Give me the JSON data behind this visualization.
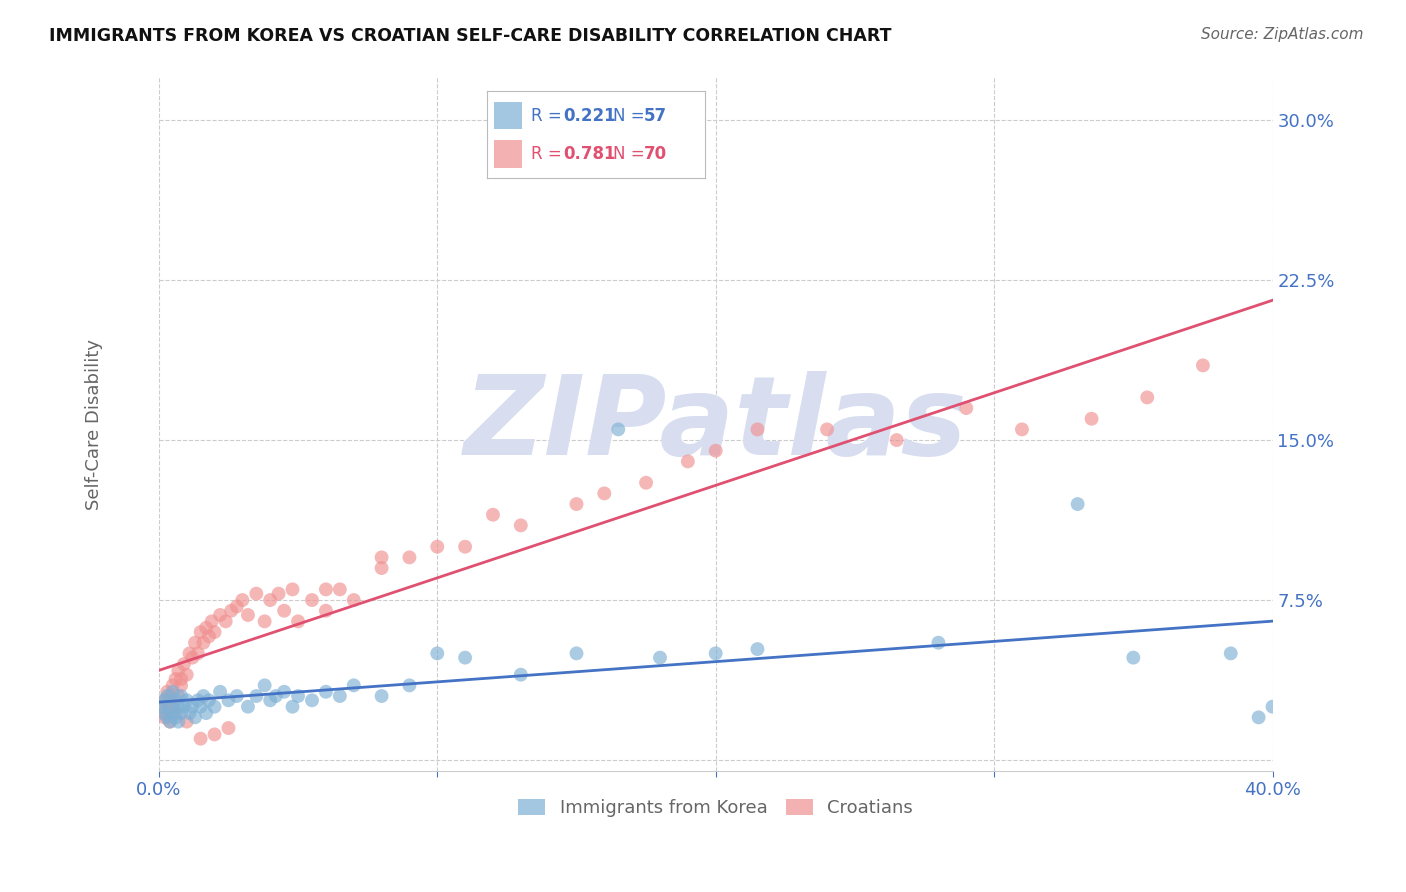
{
  "title": "IMMIGRANTS FROM KOREA VS CROATIAN SELF-CARE DISABILITY CORRELATION CHART",
  "source": "Source: ZipAtlas.com",
  "ylabel": "Self-Care Disability",
  "xlim": [
    0.0,
    0.4
  ],
  "ylim": [
    -0.005,
    0.32
  ],
  "yticks": [
    0.0,
    0.075,
    0.15,
    0.225,
    0.3
  ],
  "ytick_labels": [
    "",
    "7.5%",
    "15.0%",
    "22.5%",
    "30.0%"
  ],
  "xticks": [
    0.0,
    0.1,
    0.2,
    0.3,
    0.4
  ],
  "xtick_labels": [
    "0.0%",
    "",
    "",
    "",
    "40.0%"
  ],
  "korea_R": 0.221,
  "korea_N": 57,
  "croatia_R": 0.781,
  "croatia_N": 70,
  "korea_color": "#7EB0D5",
  "croatia_color": "#F09090",
  "korea_line_color": "#4472C4",
  "croatia_line_color": "#E05070",
  "watermark": "ZIPatlas",
  "watermark_color": "#D8DEF0",
  "background_color": "#FFFFFF",
  "grid_color": "#CCCCCC",
  "title_color": "#111111",
  "axis_label_color": "#666666",
  "tick_label_color": "#4472C4",
  "legend_box_color_korea": "#7EB0D5",
  "legend_box_color_croatia": "#F09090",
  "korea_scatter_x": [
    0.001,
    0.002,
    0.002,
    0.003,
    0.003,
    0.004,
    0.004,
    0.005,
    0.005,
    0.006,
    0.006,
    0.007,
    0.007,
    0.008,
    0.008,
    0.009,
    0.01,
    0.011,
    0.012,
    0.013,
    0.014,
    0.015,
    0.016,
    0.017,
    0.018,
    0.02,
    0.022,
    0.025,
    0.028,
    0.032,
    0.035,
    0.038,
    0.04,
    0.042,
    0.045,
    0.048,
    0.05,
    0.055,
    0.06,
    0.065,
    0.07,
    0.08,
    0.09,
    0.1,
    0.11,
    0.13,
    0.15,
    0.165,
    0.18,
    0.2,
    0.215,
    0.28,
    0.33,
    0.35,
    0.385,
    0.395,
    0.4
  ],
  "korea_scatter_y": [
    0.025,
    0.022,
    0.028,
    0.02,
    0.03,
    0.018,
    0.025,
    0.022,
    0.032,
    0.02,
    0.028,
    0.025,
    0.018,
    0.022,
    0.03,
    0.025,
    0.028,
    0.022,
    0.025,
    0.02,
    0.028,
    0.025,
    0.03,
    0.022,
    0.028,
    0.025,
    0.032,
    0.028,
    0.03,
    0.025,
    0.03,
    0.035,
    0.028,
    0.03,
    0.032,
    0.025,
    0.03,
    0.028,
    0.032,
    0.03,
    0.035,
    0.03,
    0.035,
    0.05,
    0.048,
    0.04,
    0.05,
    0.155,
    0.048,
    0.05,
    0.052,
    0.055,
    0.12,
    0.048,
    0.05,
    0.02,
    0.025
  ],
  "croatia_scatter_x": [
    0.001,
    0.002,
    0.002,
    0.003,
    0.003,
    0.004,
    0.004,
    0.005,
    0.005,
    0.006,
    0.006,
    0.007,
    0.007,
    0.008,
    0.008,
    0.009,
    0.01,
    0.011,
    0.012,
    0.013,
    0.014,
    0.015,
    0.016,
    0.017,
    0.018,
    0.019,
    0.02,
    0.022,
    0.024,
    0.026,
    0.028,
    0.03,
    0.032,
    0.035,
    0.038,
    0.04,
    0.043,
    0.045,
    0.048,
    0.05,
    0.055,
    0.06,
    0.065,
    0.07,
    0.08,
    0.09,
    0.1,
    0.11,
    0.12,
    0.13,
    0.15,
    0.16,
    0.175,
    0.19,
    0.2,
    0.215,
    0.24,
    0.265,
    0.29,
    0.31,
    0.335,
    0.355,
    0.375,
    0.005,
    0.01,
    0.015,
    0.02,
    0.025,
    0.06,
    0.08
  ],
  "croatia_scatter_y": [
    0.022,
    0.02,
    0.028,
    0.025,
    0.032,
    0.018,
    0.03,
    0.025,
    0.035,
    0.022,
    0.038,
    0.03,
    0.042,
    0.035,
    0.038,
    0.045,
    0.04,
    0.05,
    0.048,
    0.055,
    0.05,
    0.06,
    0.055,
    0.062,
    0.058,
    0.065,
    0.06,
    0.068,
    0.065,
    0.07,
    0.072,
    0.075,
    0.068,
    0.078,
    0.065,
    0.075,
    0.078,
    0.07,
    0.08,
    0.065,
    0.075,
    0.07,
    0.08,
    0.075,
    0.09,
    0.095,
    0.1,
    0.1,
    0.115,
    0.11,
    0.12,
    0.125,
    0.13,
    0.14,
    0.145,
    0.155,
    0.155,
    0.15,
    0.165,
    0.155,
    0.16,
    0.17,
    0.185,
    0.025,
    0.018,
    0.01,
    0.012,
    0.015,
    0.08,
    0.095
  ]
}
